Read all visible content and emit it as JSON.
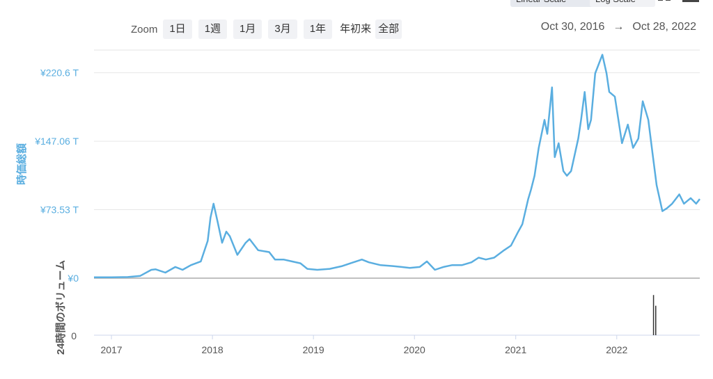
{
  "toolbar": {
    "linear_scale_label": "Linear Scale",
    "log_scale_label": "Log Scale",
    "fullscreen_icon": "expand-icon",
    "menu_icon": "menu-icon"
  },
  "zoom": {
    "label": "Zoom",
    "buttons": [
      "1日",
      "1週",
      "1月",
      "3月",
      "1年",
      "年初来",
      "全部"
    ]
  },
  "range": {
    "start": "Oct 30, 2016",
    "arrow": "→",
    "end": "Oct 28, 2022"
  },
  "chart_data": {
    "type": "line",
    "x_axis": {
      "ticks": [
        "2017",
        "2018",
        "2019",
        "2020",
        "2021",
        "2022"
      ]
    },
    "y_axis_main": {
      "label": "時価総額",
      "ticks": [
        "¥0",
        "¥73.53 T",
        "¥147.06 T",
        "¥220.6 T"
      ],
      "tick_values": [
        0,
        73.53,
        147.06,
        220.6
      ],
      "ylim": [
        0,
        245
      ],
      "unit": "trillion JPY"
    },
    "y_axis_volume": {
      "label": "24時間のボリューム",
      "ticks": [
        "0"
      ]
    },
    "series": [
      {
        "color": "#5aaee0",
        "points": [
          [
            "2016-10-30",
            1.0
          ],
          [
            "2017-01-01",
            1.0
          ],
          [
            "2017-03-01",
            1.2
          ],
          [
            "2017-04-15",
            2.5
          ],
          [
            "2017-05-25",
            9.0
          ],
          [
            "2017-06-10",
            9.5
          ],
          [
            "2017-07-15",
            6.0
          ],
          [
            "2017-08-20",
            12.0
          ],
          [
            "2017-09-15",
            9.0
          ],
          [
            "2017-10-15",
            14.0
          ],
          [
            "2017-11-20",
            18.0
          ],
          [
            "2017-12-15",
            40.0
          ],
          [
            "2017-12-25",
            65.0
          ],
          [
            "2018-01-05",
            80.0
          ],
          [
            "2018-01-20",
            60.0
          ],
          [
            "2018-02-05",
            38.0
          ],
          [
            "2018-02-20",
            50.0
          ],
          [
            "2018-03-05",
            45.0
          ],
          [
            "2018-04-01",
            25.0
          ],
          [
            "2018-05-01",
            38.0
          ],
          [
            "2018-05-15",
            42.0
          ],
          [
            "2018-06-15",
            30.0
          ],
          [
            "2018-07-25",
            28.0
          ],
          [
            "2018-08-15",
            20.0
          ],
          [
            "2018-09-15",
            20.0
          ],
          [
            "2018-10-15",
            18.0
          ],
          [
            "2018-11-15",
            16.0
          ],
          [
            "2018-12-10",
            10.0
          ],
          [
            "2019-01-15",
            9.0
          ],
          [
            "2019-03-01",
            10.0
          ],
          [
            "2019-04-15",
            13.0
          ],
          [
            "2019-05-15",
            16.0
          ],
          [
            "2019-06-25",
            20.0
          ],
          [
            "2019-07-20",
            17.0
          ],
          [
            "2019-09-01",
            14.0
          ],
          [
            "2019-10-15",
            13.0
          ],
          [
            "2019-11-15",
            12.0
          ],
          [
            "2019-12-15",
            11.0
          ],
          [
            "2020-01-20",
            12.0
          ],
          [
            "2020-02-15",
            18.0
          ],
          [
            "2020-03-15",
            9.0
          ],
          [
            "2020-04-15",
            12.0
          ],
          [
            "2020-05-15",
            14.0
          ],
          [
            "2020-06-20",
            14.0
          ],
          [
            "2020-07-25",
            17.0
          ],
          [
            "2020-08-20",
            22.0
          ],
          [
            "2020-09-15",
            20.0
          ],
          [
            "2020-10-15",
            22.0
          ],
          [
            "2020-11-20",
            30.0
          ],
          [
            "2020-12-15",
            35.0
          ],
          [
            "2021-01-10",
            50.0
          ],
          [
            "2021-01-25",
            58.0
          ],
          [
            "2021-02-15",
            85.0
          ],
          [
            "2021-02-25",
            95.0
          ],
          [
            "2021-03-10",
            110.0
          ],
          [
            "2021-03-25",
            140.0
          ],
          [
            "2021-04-15",
            170.0
          ],
          [
            "2021-04-25",
            155.0
          ],
          [
            "2021-05-12",
            205.0
          ],
          [
            "2021-05-22",
            130.0
          ],
          [
            "2021-06-05",
            145.0
          ],
          [
            "2021-06-22",
            115.0
          ],
          [
            "2021-07-05",
            110.0
          ],
          [
            "2021-07-20",
            115.0
          ],
          [
            "2021-08-15",
            150.0
          ],
          [
            "2021-08-25",
            170.0
          ],
          [
            "2021-09-07",
            200.0
          ],
          [
            "2021-09-20",
            160.0
          ],
          [
            "2021-09-30",
            170.0
          ],
          [
            "2021-10-15",
            220.0
          ],
          [
            "2021-11-10",
            240.0
          ],
          [
            "2021-11-25",
            220.0
          ],
          [
            "2021-12-05",
            200.0
          ],
          [
            "2021-12-25",
            195.0
          ],
          [
            "2022-01-20",
            145.0
          ],
          [
            "2022-02-10",
            165.0
          ],
          [
            "2022-03-01",
            140.0
          ],
          [
            "2022-03-20",
            150.0
          ],
          [
            "2022-04-05",
            190.0
          ],
          [
            "2022-04-25",
            170.0
          ],
          [
            "2022-05-10",
            135.0
          ],
          [
            "2022-05-25",
            100.0
          ],
          [
            "2022-06-15",
            72.0
          ],
          [
            "2022-07-01",
            75.0
          ],
          [
            "2022-07-20",
            80.0
          ],
          [
            "2022-08-15",
            90.0
          ],
          [
            "2022-09-01",
            80.0
          ],
          [
            "2022-09-25",
            86.0
          ],
          [
            "2022-10-15",
            80.0
          ],
          [
            "2022-10-28",
            85.0
          ]
        ]
      }
    ],
    "volume_bars": [
      {
        "date": "2022-05-12",
        "value": 0.75
      },
      {
        "date": "2022-05-20",
        "value": 0.55
      }
    ],
    "grid": true
  }
}
